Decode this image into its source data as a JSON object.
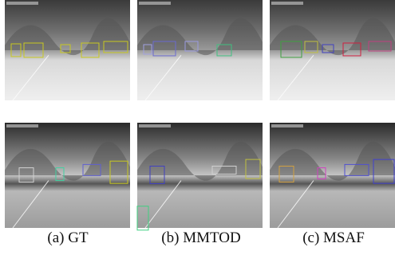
{
  "figure": {
    "captions": [
      "(a) GT",
      "(b) MMTOD",
      "(c) MSAF"
    ]
  }
}
